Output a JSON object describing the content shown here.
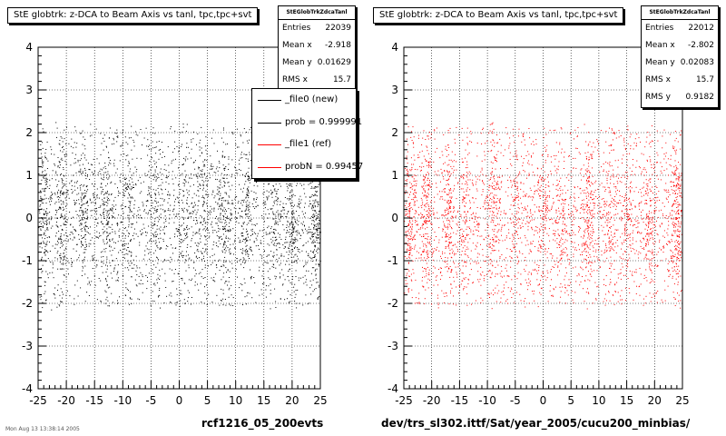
{
  "panels": [
    {
      "title": "StE globtrk: z-DCA to Beam Axis vs tanl, tpc,tpc+svt",
      "stats": {
        "name": "StEGlobTrkZdcaTanl",
        "rows": [
          {
            "label": "Entries",
            "value": "22039"
          },
          {
            "label": "Mean x",
            "value": "-2.918"
          },
          {
            "label": "Mean y",
            "value": "0.01629"
          },
          {
            "label": "RMS x",
            "value": "15.7"
          }
        ]
      },
      "legend": [
        {
          "label": "_file0 (new)",
          "color": "#000000"
        },
        {
          "label": "prob = 0.999991",
          "color": "#000000"
        },
        {
          "label": "_file1 (ref)",
          "color": "#ff0000"
        },
        {
          "label": "probN = 0.99457",
          "color": "#ff0000"
        }
      ],
      "footer": "rcf1216_05_200evts",
      "footnote": "Mon Aug 13 13:38:14 2005"
    },
    {
      "title": "StE globtrk: z-DCA to Beam Axis vs tanl, tpc,tpc+svt",
      "stats": {
        "name": "StEGlobTrkZdcaTanl",
        "rows": [
          {
            "label": "Entries",
            "value": "22012"
          },
          {
            "label": "Mean x",
            "value": "-2.802"
          },
          {
            "label": "Mean y",
            "value": "0.02083"
          },
          {
            "label": "RMS x",
            "value": "15.7"
          },
          {
            "label": "RMS y",
            "value": "0.9182"
          }
        ]
      },
      "footer": "dev/trs_sl302.ittf/Sat/year_2005/cucu200_minbias/"
    }
  ],
  "chart_data": [
    {
      "type": "scatter",
      "xlim": [
        -25,
        25
      ],
      "ylim": [
        -4,
        4
      ],
      "xticks": [
        -25,
        -20,
        -15,
        -10,
        -5,
        0,
        5,
        10,
        15,
        20,
        25
      ],
      "yticks": [
        -4,
        -3,
        -2,
        -1,
        0,
        1,
        2,
        3,
        4
      ],
      "grid": true,
      "color": "#000000",
      "entries": 22039,
      "mean_x": -2.918,
      "mean_y": 0.01629,
      "rms_x": 15.7,
      "band_x": [
        -24,
        -21,
        -17,
        -13,
        -9,
        -4,
        1,
        4,
        8,
        12,
        17,
        20,
        24
      ],
      "band_weight": [
        4,
        5,
        4,
        4,
        5,
        4,
        3,
        3,
        4,
        4,
        4,
        5,
        7
      ]
    },
    {
      "type": "scatter",
      "xlim": [
        -25,
        25
      ],
      "ylim": [
        -4,
        4
      ],
      "xticks": [
        -25,
        -20,
        -15,
        -10,
        -5,
        0,
        5,
        10,
        15,
        20,
        25
      ],
      "yticks": [
        -4,
        -3,
        -2,
        -1,
        0,
        1,
        2,
        3,
        4
      ],
      "grid": true,
      "color": "#ff0000",
      "entries": 22012,
      "mean_x": -2.802,
      "mean_y": 0.02083,
      "rms_x": 15.7,
      "rms_y": 0.9182,
      "band_x": [
        -24,
        -21,
        -17,
        -14,
        -9,
        -5,
        0,
        3,
        8,
        12,
        15,
        19,
        24
      ],
      "band_weight": [
        5,
        5,
        4,
        3,
        5,
        3,
        3,
        3,
        5,
        3,
        3,
        4,
        7
      ]
    }
  ]
}
